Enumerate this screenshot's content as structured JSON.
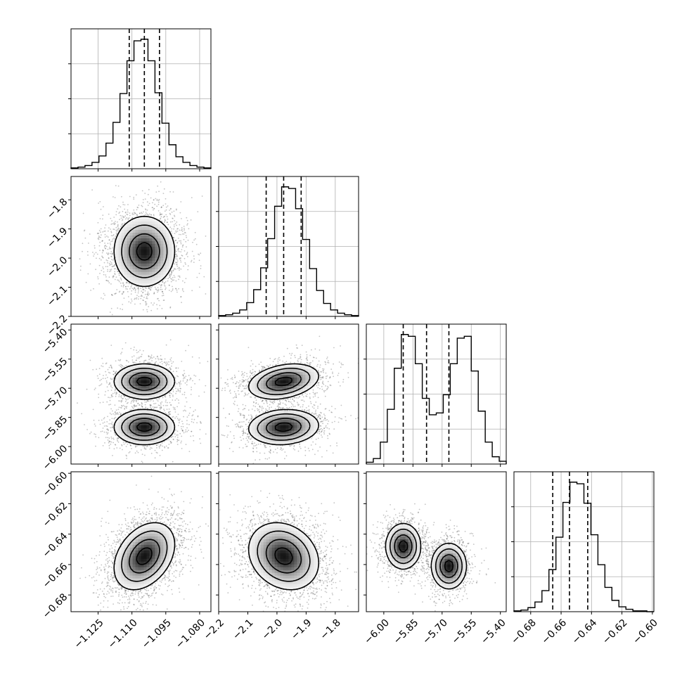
{
  "chart_data": {
    "type": "corner",
    "parameters": [
      {
        "ticks": [
          -1.125,
          -1.11,
          -1.095,
          -1.08
        ],
        "tick_labels": [
          "−1.125",
          "−1.110",
          "−1.095",
          "−1.080"
        ],
        "range": [
          -1.137,
          -1.075
        ],
        "quantiles": [
          -1.1112,
          -1.1045,
          -1.0978
        ],
        "hist_counts": [
          1,
          2,
          4,
          8,
          16,
          32,
          58,
          94,
          135,
          160,
          162,
          135,
          95,
          57,
          30,
          15,
          8,
          4,
          2,
          1
        ]
      },
      {
        "ticks": [
          -2.2,
          -2.1,
          -2.0,
          -1.9,
          -1.8
        ],
        "tick_labels": [
          "−2.2",
          "−2.1",
          "−2.0",
          "−1.9",
          "−1.8"
        ],
        "range": [
          -2.2,
          -1.72
        ],
        "quantiles": [
          -2.037,
          -1.977,
          -1.917
        ],
        "hist_counts": [
          1,
          2,
          4,
          8,
          17,
          33,
          60,
          96,
          136,
          160,
          158,
          133,
          95,
          59,
          32,
          16,
          8,
          4,
          2,
          1
        ]
      },
      {
        "ticks": [
          -6.0,
          -5.85,
          -5.7,
          -5.55,
          -5.4
        ],
        "tick_labels": [
          "−6.00",
          "−5.85",
          "−5.70",
          "−5.55",
          "−5.40"
        ],
        "range": [
          -6.09,
          -5.37
        ],
        "quantiles": [
          -5.9,
          -5.78,
          -5.665
        ],
        "hist_counts": [
          2,
          6,
          24,
          60,
          105,
          142,
          140,
          110,
          72,
          54,
          56,
          76,
          110,
          138,
          140,
          102,
          58,
          24,
          8,
          3
        ]
      },
      {
        "ticks": [
          -0.68,
          -0.66,
          -0.64,
          -0.62,
          -0.6
        ],
        "tick_labels": [
          "−0.68",
          "−0.66",
          "−0.64",
          "−0.62",
          "−0.60"
        ],
        "range": [
          -0.691,
          -0.599
        ],
        "quantiles": [
          -0.6655,
          -0.6545,
          -0.6425
        ],
        "hist_counts": [
          1,
          2,
          5,
          12,
          26,
          52,
          92,
          135,
          160,
          158,
          134,
          95,
          58,
          30,
          14,
          6,
          3,
          1,
          1,
          0
        ]
      }
    ],
    "pairs": [
      {
        "x": 0,
        "y": 1,
        "modes": [
          {
            "cx": -1.1045,
            "cy": -1.977,
            "sx": 0.0067,
            "sy": 0.06,
            "rho": 0.0,
            "w": 1
          }
        ]
      },
      {
        "x": 0,
        "y": 2,
        "modes": [
          {
            "cx": -1.1045,
            "cy": -5.665,
            "sx": 0.0067,
            "sy": 0.045,
            "rho": 0.0,
            "w": 0.5
          },
          {
            "cx": -1.1045,
            "cy": -5.9,
            "sx": 0.0067,
            "sy": 0.045,
            "rho": 0.0,
            "w": 0.5
          }
        ]
      },
      {
        "x": 1,
        "y": 2,
        "modes": [
          {
            "cx": -1.977,
            "cy": -5.665,
            "sx": 0.06,
            "sy": 0.045,
            "rho": 0.3,
            "w": 0.5
          },
          {
            "cx": -1.977,
            "cy": -5.9,
            "sx": 0.06,
            "sy": 0.045,
            "rho": 0.1,
            "w": 0.5
          }
        ]
      },
      {
        "x": 0,
        "y": 3,
        "modes": [
          {
            "cx": -1.1045,
            "cy": -0.6545,
            "sx": 0.0067,
            "sy": 0.011,
            "rho": 0.35,
            "w": 1
          }
        ]
      },
      {
        "x": 1,
        "y": 3,
        "modes": [
          {
            "cx": -1.977,
            "cy": -0.6545,
            "sx": 0.06,
            "sy": 0.011,
            "rho": -0.2,
            "w": 1
          }
        ]
      },
      {
        "x": 2,
        "y": 3,
        "modes": [
          {
            "cx": -5.9,
            "cy": -0.648,
            "sx": 0.045,
            "sy": 0.0075,
            "rho": 0.0,
            "w": 0.5
          },
          {
            "cx": -5.665,
            "cy": -0.661,
            "sx": 0.045,
            "sy": 0.0075,
            "rho": 0.0,
            "w": 0.5
          }
        ]
      }
    ],
    "contour_levels": [
      0.5,
      1.0,
      1.5,
      2.0
    ],
    "grid": true,
    "colors": {
      "line": "#000000",
      "grid": "#b0b0b0",
      "points": "#555555"
    }
  }
}
